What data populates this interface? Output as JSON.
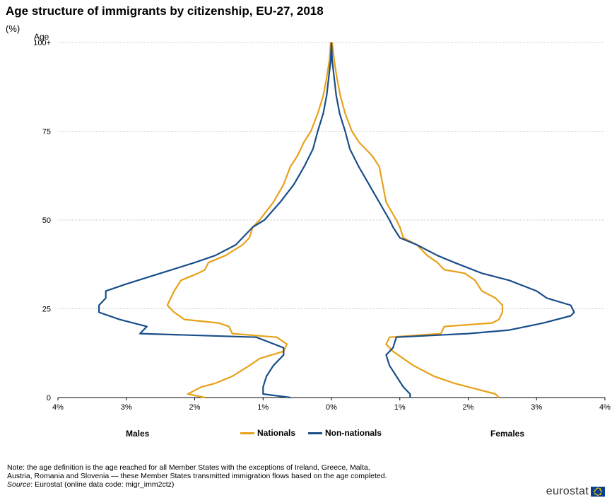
{
  "title": "Age structure of immigrants by citizenship, EU-27, 2018",
  "unit": "(%)",
  "side_labels": {
    "left": "Males",
    "right": "Females"
  },
  "note": {
    "line1": "Note: the age definition is the age reached for all Member States with the exceptions of Ireland,  Greece, Malta,",
    "line2": "Austria, Romania and Slovenia — these Member States transmitted immigration flows based on the age completed.",
    "source_label": "Source",
    "source_text": ": Eurostat (online data code: migr_imm2ctz)"
  },
  "logo_text": "eurostat",
  "chart_data": {
    "type": "line",
    "subtype": "population-pyramid",
    "ylabel": "Age",
    "ylim": [
      0,
      100
    ],
    "y_ticks": [
      0,
      25,
      50,
      75,
      100
    ],
    "y_tick_labels": [
      "0",
      "25",
      "50",
      "75",
      "100+"
    ],
    "xlim": [
      -4,
      4
    ],
    "x_ticks": [
      -4,
      -3,
      -2,
      -1,
      0,
      1,
      2,
      3,
      4
    ],
    "x_tick_labels": [
      "4%",
      "3%",
      "2%",
      "1%",
      "0%",
      "1%",
      "2%",
      "3%",
      "4%"
    ],
    "grid": "horizontal",
    "legend_position": "bottom",
    "series": [
      {
        "name": "Nationals",
        "color": "#e8a11a",
        "males": {
          "age": [
            0,
            1,
            3,
            4,
            6,
            9,
            11,
            13,
            15,
            17,
            18,
            20,
            21,
            22,
            24,
            26,
            28,
            30,
            33,
            35,
            36,
            38,
            40,
            43,
            45,
            48,
            50,
            55,
            60,
            65,
            68,
            72,
            75,
            80,
            85,
            90,
            95,
            100
          ],
          "pct": [
            1.85,
            2.1,
            1.9,
            1.7,
            1.45,
            1.2,
            1.05,
            0.7,
            0.65,
            0.8,
            1.45,
            1.5,
            1.65,
            2.15,
            2.3,
            2.4,
            2.35,
            2.3,
            2.2,
            1.95,
            1.85,
            1.8,
            1.55,
            1.3,
            1.2,
            1.15,
            1.05,
            0.85,
            0.7,
            0.6,
            0.5,
            0.4,
            0.3,
            0.2,
            0.12,
            0.07,
            0.03,
            0.01
          ]
        },
        "females": {
          "age": [
            0,
            1,
            3,
            4,
            6,
            9,
            11,
            13,
            15,
            17,
            18,
            20,
            21,
            22,
            24,
            26,
            28,
            30,
            33,
            35,
            36,
            38,
            40,
            43,
            45,
            48,
            50,
            55,
            60,
            65,
            68,
            72,
            75,
            80,
            85,
            90,
            95,
            100
          ],
          "pct": [
            2.45,
            2.4,
            2.0,
            1.8,
            1.5,
            1.2,
            1.05,
            0.9,
            0.8,
            0.85,
            1.6,
            1.65,
            2.35,
            2.45,
            2.5,
            2.5,
            2.4,
            2.2,
            2.1,
            1.95,
            1.65,
            1.55,
            1.4,
            1.25,
            1.05,
            1.0,
            0.95,
            0.8,
            0.75,
            0.7,
            0.6,
            0.4,
            0.3,
            0.2,
            0.13,
            0.08,
            0.04,
            0.01
          ]
        }
      },
      {
        "name": "Non-nationals",
        "color": "#1a4e8a",
        "males": {
          "age": [
            0,
            1,
            3,
            6,
            9,
            12,
            14,
            17,
            18,
            20,
            22,
            24,
            26,
            28,
            30,
            32,
            35,
            38,
            40,
            43,
            45,
            48,
            50,
            55,
            60,
            65,
            70,
            75,
            80,
            85,
            90,
            95,
            100
          ],
          "pct": [
            0.6,
            1.0,
            1.0,
            0.95,
            0.85,
            0.7,
            0.7,
            1.1,
            2.8,
            2.7,
            3.1,
            3.4,
            3.4,
            3.3,
            3.3,
            3.0,
            2.5,
            2.0,
            1.7,
            1.4,
            1.3,
            1.15,
            0.98,
            0.75,
            0.55,
            0.4,
            0.27,
            0.2,
            0.12,
            0.07,
            0.04,
            0.01,
            0.0
          ]
        },
        "females": {
          "age": [
            0,
            1,
            3,
            6,
            9,
            12,
            14,
            17,
            18,
            19,
            21,
            23,
            24,
            26,
            28,
            30,
            33,
            35,
            38,
            40,
            43,
            45,
            48,
            50,
            55,
            60,
            65,
            70,
            75,
            80,
            85,
            90,
            95,
            100
          ],
          "pct": [
            1.15,
            1.15,
            1.05,
            0.95,
            0.85,
            0.8,
            0.9,
            0.95,
            2.0,
            2.6,
            3.1,
            3.5,
            3.55,
            3.5,
            3.15,
            3.0,
            2.6,
            2.2,
            1.8,
            1.55,
            1.25,
            1.0,
            0.9,
            0.85,
            0.7,
            0.55,
            0.4,
            0.27,
            0.2,
            0.12,
            0.07,
            0.04,
            0.01,
            0.0
          ]
        }
      }
    ]
  }
}
